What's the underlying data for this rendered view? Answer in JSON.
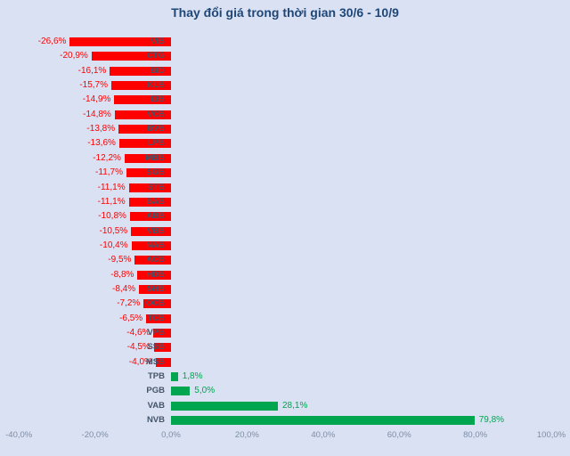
{
  "title": "Thay đổi giá trong thời gian 30/6 - 10/9",
  "chart_data": {
    "type": "bar",
    "orientation": "horizontal",
    "title": "Thay đổi giá trong thời gian 30/6 - 10/9",
    "categories": [
      "VIB",
      "CTG",
      "BID",
      "KLB",
      "EIB",
      "VCB",
      "BVB",
      "LPB",
      "MBB",
      "SGB",
      "STB",
      "BAB",
      "ABB",
      "VBB",
      "NAB",
      "ACB",
      "HDB",
      "SHB",
      "OCB",
      "TCB",
      "VPB",
      "SSB",
      "MSB",
      "TPB",
      "PGB",
      "VAB",
      "NVB"
    ],
    "values": [
      -26.6,
      -20.9,
      -16.1,
      -15.7,
      -14.9,
      -14.8,
      -13.8,
      -13.6,
      -12.2,
      -11.7,
      -11.1,
      -11.1,
      -10.8,
      -10.5,
      -10.4,
      -9.5,
      -8.8,
      -8.4,
      -7.2,
      -6.5,
      -4.6,
      -4.5,
      -4.0,
      1.8,
      5.0,
      28.1,
      79.8
    ],
    "labels": [
      "-26,6%",
      "-20,9%",
      "-16,1%",
      "-15,7%",
      "-14,9%",
      "-14,8%",
      "-13,8%",
      "-13,6%",
      "-12,2%",
      "-11,7%",
      "-11,1%",
      "-11,1%",
      "-10,8%",
      "-10,5%",
      "-10,4%",
      "-9,5%",
      "-8,8%",
      "-8,4%",
      "-7,2%",
      "-6,5%",
      "-4,6%",
      "-4,5%",
      "-4,0%",
      "1,8%",
      "5,0%",
      "28,1%",
      "79,8%"
    ],
    "x_ticks": [
      {
        "value": -40,
        "label": "-40,0%"
      },
      {
        "value": -20,
        "label": "-20,0%"
      },
      {
        "value": 0,
        "label": "0,0%"
      },
      {
        "value": 20,
        "label": "20,0%"
      },
      {
        "value": 40,
        "label": "40,0%"
      },
      {
        "value": 60,
        "label": "60,0%"
      },
      {
        "value": 80,
        "label": "80,0%"
      },
      {
        "value": 100,
        "label": "100,0%"
      }
    ],
    "xlim": [
      -40,
      100
    ],
    "grid": false,
    "legend": "none",
    "colors": {
      "background": "#d9e1f2",
      "negative_bar": "#ff0000",
      "positive_bar": "#00a550",
      "negative_value_label": "#ff0000",
      "positive_value_label": "#00a550",
      "ticker_label": "#44546a",
      "axis_label": "#7e8ea5",
      "title": "#1f4777"
    }
  }
}
